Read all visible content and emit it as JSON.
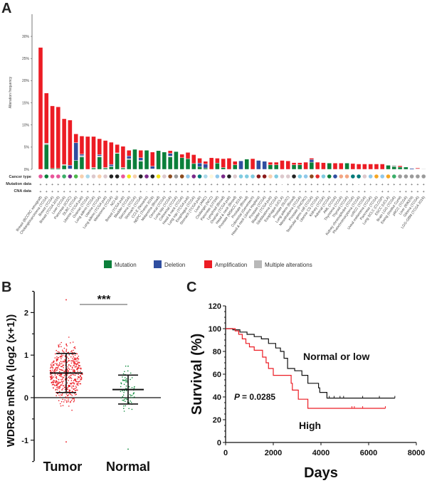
{
  "panels": {
    "a": "A",
    "b": "B",
    "c": "C"
  },
  "chart_data": [
    {
      "type": "bar",
      "stacked": true,
      "panel": "A",
      "title": "",
      "xlabel": "",
      "ylabel": "Alteration frequency",
      "ylim": [
        0,
        35
      ],
      "yticks": [
        "0%",
        "5%",
        "10%",
        "15%",
        "20%",
        "25%",
        "30%"
      ],
      "row_labels": [
        "Cancer type",
        "Mutation data",
        "CNA data"
      ],
      "legend": [
        {
          "name": "Mutation",
          "color": "#0b7f3a"
        },
        {
          "name": "Deletion",
          "color": "#2f4ea0"
        },
        {
          "name": "Amplification",
          "color": "#ec1c24"
        },
        {
          "name": "Multiple alterations",
          "color": "#b8b8b8"
        }
      ],
      "legend_position": "bottom",
      "categories": [
        "Breast (BCCRC xenograft)",
        "Cholangiocarcinoma (TCGA)",
        "Breast (TCGA)",
        "Breast (TCGA 2015)",
        "Liver (TCGA)",
        "Pancreas (ICGC)",
        "DLBC (TCGA)",
        "Uterine (TCGA pub)",
        "Ovarian (TCGA)",
        "Lung adeno (TCGA)",
        "Uterine (TCGA)",
        "Lung adeno (TCGA pub)",
        "Melanoma (TCGA)",
        "NCI-60",
        "Breast (TCGA pub)",
        "Bladder (TCGA)",
        "Sarcoma (TCGA)",
        "Stomach (TCGA)",
        "CCLE (Novartis)",
        "NEPC (Trento 2016)",
        "Melanoma (Broad)",
        "Cervical (TCGA)",
        "Lung squ (TCGA)",
        "Colorectal (TCGA)",
        "Head & neck (TCGA)",
        "Lung squ (TCGA pub)",
        "Esophagus (TCGA)",
        "Stomach (TCGA pub)",
        "Liver (AMC)",
        "Cholangio (NCC)",
        "Pancreas (UTSW)",
        "Lymphoid (Broad)",
        "Ovarian (TCGA pub)",
        "Head & neck (Broad)",
        "Prostate (MSKCC 2014)",
        "Prostate (Broad)",
        "Colorectal (Genentech)",
        "Head & neck (Johns Hopkins)",
        "Prostate (TCGA)",
        "Bladder (TCGA pub)",
        "Glioblastoma (TCGA)",
        "Esophagus (UCLA)",
        "Prostate (SU2C)",
        "Lung adeno (Broad)",
        "Mesothelioma (TCGA)",
        "Prostate (FHCRC)",
        "Testicular germ cell (TCGA)",
        "Uterine CS (TCGA)",
        "Kidney (TCGA)",
        "Adrenal (TCGA)",
        "AML (TCGA)",
        "Thymoma (TCGA)",
        "Thyroid (TCGA)",
        "Kidney chromophobe (TCGA)",
        "Pheochromocytoma (TCGA)",
        "ccRCC (TCGA)",
        "Uveal melanoma (TCGA)",
        "Pancreas (TCGA)",
        "Lung SCLC (CLCGP)",
        "ESCC (UCLA)",
        "Brain LGG (TCGA)",
        "Ewing (Institut Curie)",
        "pRCC (TCGA)",
        "Liver (RIKEN)",
        "Glioma (TCGA)",
        "LGG-GBM (TCGA 2016)"
      ],
      "series": [
        {
          "name": "Mutation",
          "values": [
            0,
            5.6,
            0.2,
            0.2,
            0.9,
            0,
            2.0,
            2.8,
            0,
            0.3,
            2.8,
            0.3,
            0.6,
            3.6,
            0.3,
            2.2,
            4.5,
            1.8,
            4.3,
            0,
            4.2,
            3.9,
            2.8,
            4.0,
            2.6,
            2.4,
            1.3,
            0.6,
            0.3,
            0,
            1.4,
            0.4,
            0,
            1.0,
            0,
            2.3,
            0,
            0,
            0,
            1.0,
            1.0,
            0,
            0,
            1.0,
            1.0,
            0,
            1.6,
            0,
            0,
            1.4,
            0,
            0,
            1.4,
            0,
            0,
            0,
            0,
            0,
            0,
            0.9,
            0.6,
            0.5,
            0.5,
            0,
            0,
            0
          ]
        },
        {
          "name": "Deletion",
          "values": [
            0,
            0,
            0,
            0,
            0,
            0.8,
            4.0,
            0.3,
            0,
            0,
            0.3,
            0,
            0.4,
            0,
            0,
            0.6,
            0,
            0.6,
            0,
            0.6,
            0,
            0,
            0.6,
            0,
            0,
            0,
            0,
            0.8,
            0.9,
            0,
            0,
            0,
            0,
            0,
            1.9,
            0,
            0,
            2.0,
            1.8,
            0,
            0,
            0,
            0,
            0,
            0,
            0,
            0.6,
            0,
            0,
            0,
            0,
            0,
            0,
            0,
            0,
            0,
            0,
            0,
            0,
            0,
            0,
            0,
            0,
            0.2,
            0,
            0
          ]
        },
        {
          "name": "Amplification",
          "values": [
            27.5,
            11.3,
            14.1,
            13.9,
            10.3,
            10.2,
            2.0,
            4.1,
            7.4,
            7.0,
            3.6,
            6.1,
            5.0,
            1.9,
            4.8,
            1.3,
            0,
            1.7,
            0,
            3.2,
            0,
            0,
            0.6,
            0,
            0.8,
            1.4,
            2.0,
            1.1,
            0.6,
            2.6,
            1.1,
            2.0,
            2.5,
            0.8,
            0,
            0,
            2.4,
            0,
            0,
            0.6,
            0.6,
            2.0,
            1.9,
            0.5,
            0.5,
            1.6,
            0.3,
            1.6,
            1.5,
            0,
            1.4,
            1.4,
            0,
            1.3,
            1.2,
            1.2,
            1.2,
            1.2,
            1.2,
            0,
            0,
            0.3,
            0,
            0,
            0.2,
            0
          ]
        },
        {
          "name": "Multiple alterations",
          "values": [
            0,
            0.3,
            0,
            0,
            0.2,
            0.1,
            0,
            0.3,
            0,
            0.1,
            0.2,
            0.1,
            0.1,
            0.1,
            0.1,
            0.2,
            0,
            0.2,
            0,
            0.1,
            0,
            0,
            0.2,
            0,
            0,
            0,
            0,
            0,
            0,
            0,
            0,
            0,
            0,
            0,
            0,
            0,
            0,
            0,
            0,
            0,
            0,
            0,
            0,
            0,
            0,
            0,
            0,
            0,
            0,
            0,
            0,
            0,
            0,
            0,
            0,
            0,
            0,
            0,
            0,
            0,
            0.3,
            0,
            0,
            0,
            0.1,
            0.1
          ]
        }
      ],
      "cancer_type_colors": [
        "#e8559a",
        "#0b7f3a",
        "#e8559a",
        "#e8559a",
        "#3aae6a",
        "#7b2a8a",
        "#4db84d",
        "#f6cfae",
        "#a9d8ea",
        "#dcc8cc",
        "#f6cfae",
        "#dcc8cc",
        "#222222",
        "#222222",
        "#e8559a",
        "#f2e415",
        "#f6cfae",
        "#222222",
        "#7b2a8a",
        "#222222",
        "#f2e415",
        "#dcc8cc",
        "#8b4a1e",
        "#9a9a9a",
        "#8b4a1e",
        "#8fc8ea",
        "#7b2a8a",
        "#007a7a",
        "#a9d8ea",
        "#fff7dc",
        "#8fc8ea",
        "#7b2a8a",
        "#222222",
        "#dcc8cc",
        "#7fcbe0",
        "#7fcbe0",
        "#7fcbe0",
        "#8b1a1a",
        "#8b1a1a",
        "#f6cfae",
        "#7fcbe0",
        "#dcc8cc",
        "#dcc8cc",
        "#222222",
        "#7fcbe0",
        "#8fc8ea",
        "#8b4a1e",
        "#e42a2a",
        "#7fcbe0",
        "#0b7f3a",
        "#2f4ea0",
        "#f3a582",
        "#f3a582",
        "#007a7a",
        "#007a7a",
        "#dcc8cc",
        "#8fc8ea",
        "#f5a623",
        "#8fc8ea",
        "#f5a623",
        "#3aae6a",
        "#9a9a9a",
        "#9a9a9a",
        "#9a9a9a",
        "#9a9a9a",
        "#9a9a9a"
      ],
      "mutation_data": "+++++++++++++++++++++++++++++++++++++++++-++++++++++++-+++++++++++",
      "cna_data": "++++++++++++++++-+-+-+++++++++++++-++++++-+++++++++-++++--++-+++++"
    },
    {
      "type": "scatter",
      "panel": "B",
      "title": "",
      "xlabel": "",
      "ylabel": "WDR26 mRNA (log2 (x+1))",
      "ylim": [
        -1.5,
        2.5
      ],
      "yticks": [
        "-1",
        "0",
        "1",
        "2"
      ],
      "categories": [
        "Tumor",
        "Normal"
      ],
      "significance": "***",
      "groups": [
        {
          "name": "Tumor",
          "color": "#ec1c24",
          "mean": 0.58,
          "sd_upper": 1.04,
          "sd_lower": 0.12,
          "min": -1.04,
          "max": 2.3,
          "n_approx": 520
        },
        {
          "name": "Normal",
          "color": "#0b8a3a",
          "mean": 0.19,
          "sd_upper": 0.53,
          "sd_lower": -0.15,
          "min": -1.21,
          "max": 0.74,
          "n_approx": 72
        }
      ],
      "reference_line": 0
    },
    {
      "type": "line",
      "panel": "C",
      "title": "",
      "xlabel": "Days",
      "ylabel": "Survival (%)",
      "xlim": [
        0,
        8000
      ],
      "ylim": [
        0,
        120
      ],
      "xticks": [
        "0",
        "2000",
        "4000",
        "6000",
        "8000"
      ],
      "yticks": [
        "0",
        "20",
        "40",
        "60",
        "80",
        "100",
        "120"
      ],
      "annotation": {
        "p_label": "P",
        "p_value": "= 0.0285"
      },
      "series": [
        {
          "name": "Normal or low",
          "color": "#111111",
          "x": [
            0,
            300,
            600,
            900,
            1200,
            1500,
            1800,
            2100,
            2300,
            2450,
            2600,
            2900,
            3200,
            3450,
            3900,
            3950,
            4250,
            7100
          ],
          "y": [
            100,
            99,
            97,
            95,
            93,
            91,
            87,
            83,
            80,
            74,
            65,
            63,
            59,
            52,
            48,
            44,
            39,
            39
          ]
        },
        {
          "name": "High",
          "color": "#ec1c24",
          "x": [
            0,
            400,
            550,
            700,
            850,
            1000,
            1200,
            1550,
            1700,
            1800,
            2000,
            2750,
            2800,
            3050,
            3450,
            6700
          ],
          "y": [
            100,
            98,
            95,
            91,
            87,
            84,
            81,
            75,
            70,
            65,
            59,
            52,
            46,
            38,
            30,
            30
          ]
        }
      ]
    }
  ]
}
